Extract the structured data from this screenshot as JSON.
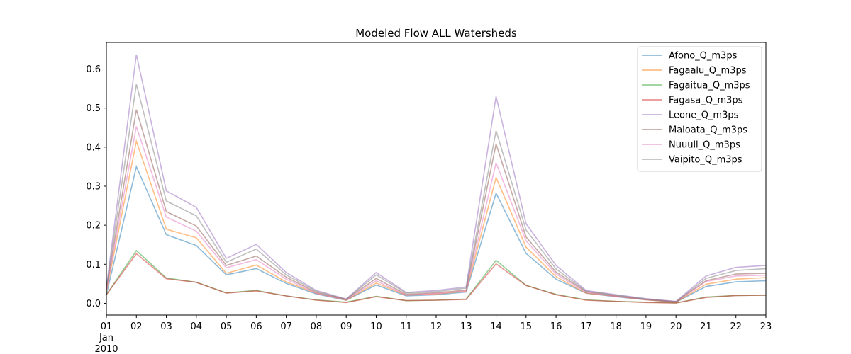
{
  "chart_data": {
    "type": "line",
    "title": "Modeled Flow ALL Watersheds",
    "xlabel": "",
    "ylabel": "",
    "x": [
      "01",
      "02",
      "03",
      "04",
      "05",
      "06",
      "07",
      "08",
      "09",
      "10",
      "11",
      "12",
      "13",
      "14",
      "15",
      "16",
      "17",
      "18",
      "19",
      "20",
      "21",
      "22",
      "23"
    ],
    "x_first_tick_extra": [
      "Jan",
      "2010"
    ],
    "xlim": [
      "01",
      "23"
    ],
    "ylim": [
      -0.03,
      0.668
    ],
    "yticks": [
      "0.0",
      "0.1",
      "0.2",
      "0.3",
      "0.4",
      "0.5",
      "0.6"
    ],
    "grid": false,
    "legend_position": "top-right",
    "series": [
      {
        "name": "Afono_Q_m3ps",
        "color": "#1f77b4",
        "values": [
          0.022,
          0.35,
          0.176,
          0.148,
          0.073,
          0.089,
          0.051,
          0.024,
          0.008,
          0.047,
          0.019,
          0.022,
          0.029,
          0.282,
          0.128,
          0.062,
          0.026,
          0.017,
          0.009,
          0.003,
          0.043,
          0.055,
          0.058
        ]
      },
      {
        "name": "Fagaalu_Q_m3ps",
        "color": "#ff7f0e",
        "values": [
          0.03,
          0.415,
          0.19,
          0.168,
          0.077,
          0.098,
          0.055,
          0.026,
          0.008,
          0.052,
          0.021,
          0.024,
          0.031,
          0.322,
          0.144,
          0.068,
          0.026,
          0.018,
          0.009,
          0.003,
          0.049,
          0.062,
          0.066
        ]
      },
      {
        "name": "Fagaitua_Q_m3ps",
        "color": "#2ca02c",
        "values": [
          0.022,
          0.135,
          0.065,
          0.054,
          0.027,
          0.033,
          0.019,
          0.009,
          0.003,
          0.018,
          0.007,
          0.008,
          0.011,
          0.11,
          0.046,
          0.023,
          0.009,
          0.005,
          0.003,
          0.001,
          0.016,
          0.02,
          0.021
        ]
      },
      {
        "name": "Fagasa_Q_m3ps",
        "color": "#d62728",
        "values": [
          0.022,
          0.127,
          0.063,
          0.054,
          0.026,
          0.032,
          0.019,
          0.008,
          0.002,
          0.017,
          0.007,
          0.008,
          0.01,
          0.101,
          0.046,
          0.022,
          0.008,
          0.005,
          0.002,
          0.001,
          0.015,
          0.02,
          0.021
        ]
      },
      {
        "name": "Leone_Q_m3ps",
        "color": "#9467bd",
        "values": [
          0.04,
          0.637,
          0.288,
          0.246,
          0.115,
          0.151,
          0.079,
          0.033,
          0.011,
          0.079,
          0.028,
          0.033,
          0.042,
          0.53,
          0.204,
          0.097,
          0.033,
          0.022,
          0.012,
          0.005,
          0.07,
          0.092,
          0.097
        ]
      },
      {
        "name": "Maloata_Q_m3ps",
        "color": "#8c564b",
        "values": [
          0.035,
          0.496,
          0.235,
          0.198,
          0.097,
          0.121,
          0.067,
          0.028,
          0.01,
          0.064,
          0.023,
          0.027,
          0.034,
          0.408,
          0.17,
          0.08,
          0.03,
          0.019,
          0.01,
          0.004,
          0.058,
          0.075,
          0.077
        ]
      },
      {
        "name": "Nuuuli_Q_m3ps",
        "color": "#e377c2",
        "values": [
          0.033,
          0.453,
          0.221,
          0.185,
          0.091,
          0.112,
          0.062,
          0.026,
          0.009,
          0.058,
          0.021,
          0.025,
          0.032,
          0.36,
          0.16,
          0.075,
          0.028,
          0.018,
          0.01,
          0.004,
          0.056,
          0.07,
          0.072
        ]
      },
      {
        "name": "Vaipito_Q_m3ps",
        "color": "#7f7f7f",
        "values": [
          0.038,
          0.561,
          0.262,
          0.224,
          0.105,
          0.139,
          0.073,
          0.031,
          0.01,
          0.073,
          0.026,
          0.03,
          0.039,
          0.442,
          0.188,
          0.088,
          0.031,
          0.021,
          0.011,
          0.004,
          0.064,
          0.084,
          0.089
        ]
      }
    ]
  }
}
